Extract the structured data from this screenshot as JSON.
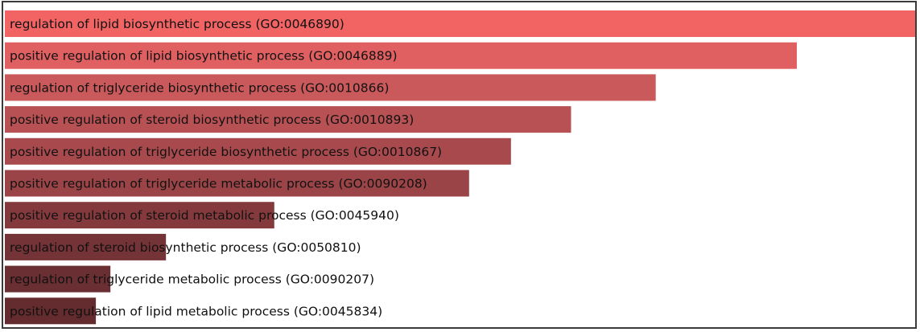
{
  "chart_data": {
    "type": "bar",
    "orientation": "horizontal",
    "title": "",
    "xlabel": "",
    "ylabel": "",
    "grid": false,
    "legend": "none",
    "categories": [
      "regulation of lipid biosynthetic process (GO:0046890)",
      "positive regulation of lipid biosynthetic process (GO:0046889)",
      "regulation of triglyceride biosynthetic process (GO:0010866)",
      "positive regulation of steroid biosynthetic process (GO:0010893)",
      "positive regulation of triglyceride biosynthetic process (GO:0010867)",
      "positive regulation of triglyceride metabolic process (GO:0090208)",
      "positive regulation of steroid metabolic process (GO:0045940)",
      "regulation of steroid biosynthetic process (GO:0050810)",
      "regulation of triglyceride metabolic process (GO:0090207)",
      "positive regulation of lipid metabolic process (GO:0045834)"
    ],
    "values": [
      1.0,
      0.87,
      0.715,
      0.622,
      0.556,
      0.51,
      0.296,
      0.177,
      0.116,
      0.1
    ],
    "xlim": [
      0,
      1
    ],
    "bar_colors": [
      "#f26464",
      "#e06062",
      "#c9595b",
      "#b85154",
      "#a84a4d",
      "#9b4447",
      "#843a3d",
      "#743336",
      "#6a2f32",
      "#652c2f"
    ]
  }
}
